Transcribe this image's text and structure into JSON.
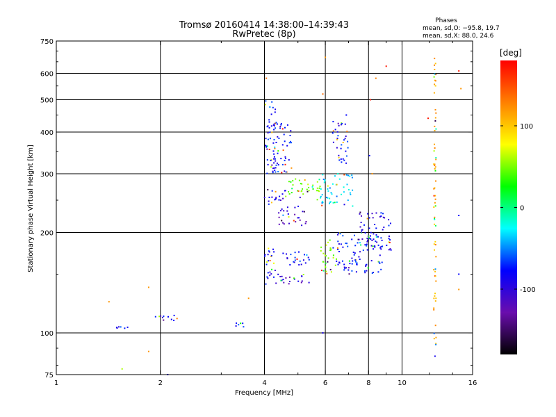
{
  "chart_data": {
    "type": "scatter",
    "title": "Tromsø 20160414 14:38:00–14:39:43",
    "subtitle": "RwPretec (8p)",
    "xlabel": "Frequency [MHz]",
    "ylabel": "Stationary phase Virtual Height [km]",
    "x_scale": "log",
    "y_scale": "log",
    "xlim": [
      1,
      16
    ],
    "ylim": [
      75,
      750
    ],
    "x_ticks": [
      "1",
      "2",
      "4",
      "6",
      "8",
      "10",
      "16"
    ],
    "y_ticks": [
      "75",
      "100",
      "200",
      "300",
      "400",
      "500",
      "600",
      "750"
    ],
    "grid_x": [
      2,
      4,
      6,
      8,
      10
    ],
    "grid_y": [
      100,
      200,
      300,
      400,
      500,
      600
    ],
    "grid": true,
    "legend": {
      "title": "Phases",
      "line1": "mean, sd,O: −95.8, 19.7",
      "line2": "mean, sd,X:  88.0, 24.6"
    },
    "colorbar": {
      "label": "[deg]",
      "range": [
        -180,
        180
      ],
      "ticks": [
        "100",
        "0",
        "-100"
      ],
      "tick_values": [
        100,
        0,
        -100
      ],
      "position": "right",
      "colors": [
        "#000000",
        "#6a0dad",
        "#0000ff",
        "#00ffff",
        "#00ff00",
        "#ffff00",
        "#ff8000",
        "#ff0000"
      ]
    },
    "clusters": [
      {
        "x": [
          1.42,
          1.62
        ],
        "y": [
          103,
          105
        ],
        "phase": -100
      },
      {
        "x": [
          1.9,
          2.25
        ],
        "y": [
          108,
          113
        ],
        "phase": -110
      },
      {
        "x": [
          3.3,
          3.5
        ],
        "y": [
          104,
          107
        ],
        "phase": -100
      },
      {
        "x": [
          4.0,
          4.3
        ],
        "y": [
          140,
          185
        ],
        "phase": -110
      },
      {
        "x": [
          4.3,
          5.5
        ],
        "y": [
          140,
          150
        ],
        "phase": -120
      },
      {
        "x": [
          4.5,
          5.5
        ],
        "y": [
          160,
          175
        ],
        "phase": -100
      },
      {
        "x": [
          4.4,
          5.3
        ],
        "y": [
          210,
          240
        ],
        "phase": -120
      },
      {
        "x": [
          4.0,
          4.6
        ],
        "y": [
          240,
          270
        ],
        "phase": -110
      },
      {
        "x": [
          4.6,
          5.8
        ],
        "y": [
          250,
          290
        ],
        "phase": 20
      },
      {
        "x": [
          4.0,
          4.3
        ],
        "y": [
          300,
          500
        ],
        "phase": -100
      },
      {
        "x": [
          4.2,
          4.8
        ],
        "y": [
          300,
          430
        ],
        "phase": -100
      },
      {
        "x": [
          5.8,
          7.2
        ],
        "y": [
          240,
          300
        ],
        "phase": -60
      },
      {
        "x": [
          6.3,
          7.0
        ],
        "y": [
          320,
          430
        ],
        "phase": -100
      },
      {
        "x": [
          6.5,
          8.8
        ],
        "y": [
          150,
          200
        ],
        "phase": -100
      },
      {
        "x": [
          7.5,
          9.3
        ],
        "y": [
          175,
          230
        ],
        "phase": -110
      },
      {
        "x": [
          5.8,
          6.5
        ],
        "y": [
          150,
          190
        ],
        "phase": 30
      },
      {
        "x": [
          12.35,
          12.55
        ],
        "y": [
          80,
          680
        ],
        "phase": 100
      }
    ],
    "points": [
      {
        "x": 1.42,
        "y": 124,
        "phase": 110
      },
      {
        "x": 1.85,
        "y": 137,
        "phase": 110
      },
      {
        "x": 1.85,
        "y": 88,
        "phase": 110
      },
      {
        "x": 1.55,
        "y": 78,
        "phase": 40
      },
      {
        "x": 3.6,
        "y": 127,
        "phase": 110
      },
      {
        "x": 4.05,
        "y": 580,
        "phase": 130
      },
      {
        "x": 5.9,
        "y": 520,
        "phase": 130
      },
      {
        "x": 6.0,
        "y": 670,
        "phase": 110
      },
      {
        "x": 6.9,
        "y": 450,
        "phase": -100
      },
      {
        "x": 8.1,
        "y": 500,
        "phase": 170
      },
      {
        "x": 8.4,
        "y": 580,
        "phase": 120
      },
      {
        "x": 8.05,
        "y": 340,
        "phase": -100
      },
      {
        "x": 8.2,
        "y": 300,
        "phase": 110
      },
      {
        "x": 9.0,
        "y": 630,
        "phase": 170
      },
      {
        "x": 11.9,
        "y": 440,
        "phase": 170
      },
      {
        "x": 14.6,
        "y": 610,
        "phase": 170
      },
      {
        "x": 14.8,
        "y": 540,
        "phase": 110
      },
      {
        "x": 14.6,
        "y": 225,
        "phase": -100
      },
      {
        "x": 14.6,
        "y": 150,
        "phase": -100
      },
      {
        "x": 14.6,
        "y": 135,
        "phase": 110
      },
      {
        "x": 5.9,
        "y": 100,
        "phase": -110
      },
      {
        "x": 2.1,
        "y": 75,
        "phase": -110
      }
    ]
  }
}
